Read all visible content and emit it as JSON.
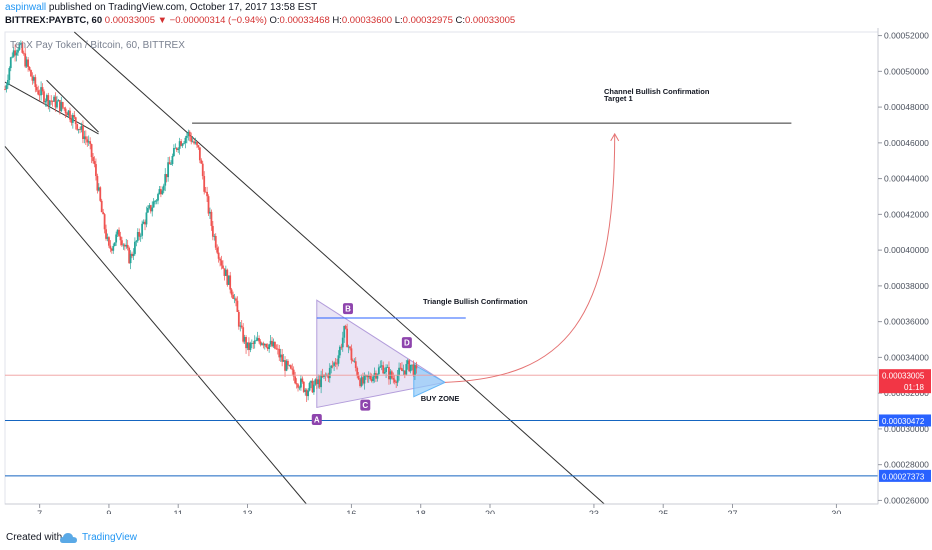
{
  "header": {
    "author": "aspinwall",
    "published": " published on TradingView.com, October 17, 2017 13:58 EST",
    "symbol": "BITTREX:PAYBTC, 60",
    "last": "0.00033005",
    "change": "▼ −0.00000314 (−0.94%)",
    "o_label": "O:",
    "o": "0.00033468",
    "h_label": "H:",
    "h": "0.00033600",
    "l_label": "L:",
    "l": "0.00032975",
    "c_label": "C:",
    "c": "0.00033005"
  },
  "footer": {
    "created": "Created with",
    "brand": "TradingView"
  },
  "colors": {
    "up": "#26a69a",
    "down": "#ef5350",
    "hline": "#2962ff",
    "price_tag": "#f23645",
    "triangle_fill": "#d1c4e9",
    "point_marker": "#8e44ad",
    "curve": "#e57373"
  },
  "chart_data": {
    "type": "candlestick",
    "watermark": "TenX Pay Token / Bitcoin, 60, BITTREX",
    "y_range": [
      0.000258,
      0.000522
    ],
    "y_ticks": [
      "0.00052000",
      "0.00050000",
      "0.00048000",
      "0.00046000",
      "0.00044000",
      "0.00042000",
      "0.00040000",
      "0.00038000",
      "0.00036000",
      "0.00034000",
      "0.00032000",
      "0.00030000",
      "0.00028000",
      "0.00026000"
    ],
    "x_ticks": [
      {
        "label": "7",
        "day": 7
      },
      {
        "label": "9",
        "day": 9
      },
      {
        "label": "11",
        "day": 11
      },
      {
        "label": "13",
        "day": 13
      },
      {
        "label": "16",
        "day": 16
      },
      {
        "label": "18",
        "day": 18
      },
      {
        "label": "20",
        "day": 20
      },
      {
        "label": "23",
        "day": 23
      },
      {
        "label": "25",
        "day": 25
      },
      {
        "label": "27",
        "day": 27
      },
      {
        "label": "30",
        "day": 30
      }
    ],
    "x_range_days": [
      6.0,
      31.2
    ],
    "price_path": [
      [
        6.0,
        0.00049
      ],
      [
        6.2,
        0.00051
      ],
      [
        6.4,
        0.000515
      ],
      [
        6.6,
        0.000505
      ],
      [
        6.9,
        0.00049
      ],
      [
        7.2,
        0.000485
      ],
      [
        7.5,
        0.000482
      ],
      [
        7.8,
        0.000478
      ],
      [
        8.1,
        0.00047
      ],
      [
        8.4,
        0.00046
      ],
      [
        8.6,
        0.000445
      ],
      [
        8.8,
        0.00042
      ],
      [
        9.0,
        0.0004
      ],
      [
        9.3,
        0.00041
      ],
      [
        9.6,
        0.000395
      ],
      [
        9.9,
        0.00041
      ],
      [
        10.1,
        0.00042
      ],
      [
        10.4,
        0.00043
      ],
      [
        10.7,
        0.000445
      ],
      [
        11.0,
        0.00046
      ],
      [
        11.3,
        0.000465
      ],
      [
        11.6,
        0.000455
      ],
      [
        11.8,
        0.00043
      ],
      [
        12.0,
        0.00041
      ],
      [
        12.3,
        0.00039
      ],
      [
        12.6,
        0.000375
      ],
      [
        12.8,
        0.000355
      ],
      [
        13.0,
        0.000345
      ],
      [
        13.4,
        0.00035
      ],
      [
        13.8,
        0.000345
      ],
      [
        14.1,
        0.000335
      ],
      [
        14.4,
        0.000328
      ],
      [
        14.7,
        0.000322
      ],
      [
        15.0,
        0.000325
      ],
      [
        15.3,
        0.00033
      ],
      [
        15.6,
        0.00034
      ],
      [
        15.8,
        0.000355
      ],
      [
        16.0,
        0.00034
      ],
      [
        16.3,
        0.000325
      ],
      [
        16.6,
        0.00033
      ],
      [
        16.9,
        0.000335
      ],
      [
        17.2,
        0.000328
      ],
      [
        17.5,
        0.000333
      ],
      [
        17.7,
        0.000336
      ],
      [
        17.9,
        0.00033005
      ]
    ],
    "horizontal_lines": [
      {
        "price": 0.000471,
        "from_day": 11.4,
        "to_day": 28.7,
        "color": "#333333",
        "label": "Channel Bullish Confirmation",
        "label2": "Target 1"
      },
      {
        "price": 0.000362,
        "from_day": 15.0,
        "to_day": 19.3,
        "color": "#2962ff",
        "label": "Triangle Bullish Confirmation"
      },
      {
        "price": 0.00030472,
        "from_day": 6.0,
        "to_day": 31.2,
        "color": "#1565c0",
        "tag": "0.00030472"
      },
      {
        "price": 0.00027373,
        "from_day": 6.0,
        "to_day": 31.2,
        "color": "#1565c0",
        "tag": "0.00027373"
      }
    ],
    "current_price": {
      "price": 0.00033005,
      "tag": "0.00033005",
      "countdown": "01:18"
    },
    "trend_lines": [
      {
        "p1": [
          6.0,
          0.000494
        ],
        "p2": [
          8.7,
          0.000465
        ]
      },
      {
        "p1": [
          7.2,
          0.000495
        ],
        "p2": [
          8.7,
          0.000466
        ]
      },
      {
        "p1": [
          8.0,
          0.000522
        ],
        "p2": [
          23.3,
          0.000258
        ]
      },
      {
        "p1": [
          6.0,
          0.000458
        ],
        "p2": [
          14.7,
          0.000258
        ]
      }
    ],
    "triangle": {
      "top": [
        15.0,
        0.000372
      ],
      "bottom": [
        15.0,
        0.000312
      ],
      "apex": [
        18.7,
        0.000326
      ]
    },
    "points": [
      {
        "label": "A",
        "day": 15.0,
        "price": 0.000305
      },
      {
        "label": "B",
        "day": 15.9,
        "price": 0.000367
      },
      {
        "label": "C",
        "day": 16.4,
        "price": 0.000313
      },
      {
        "label": "D",
        "day": 17.6,
        "price": 0.000348
      }
    ],
    "buy_zone_label": "BUY ZONE",
    "curve": {
      "from": [
        18.7,
        0.000326
      ],
      "to": [
        23.6,
        0.000465
      ]
    }
  }
}
